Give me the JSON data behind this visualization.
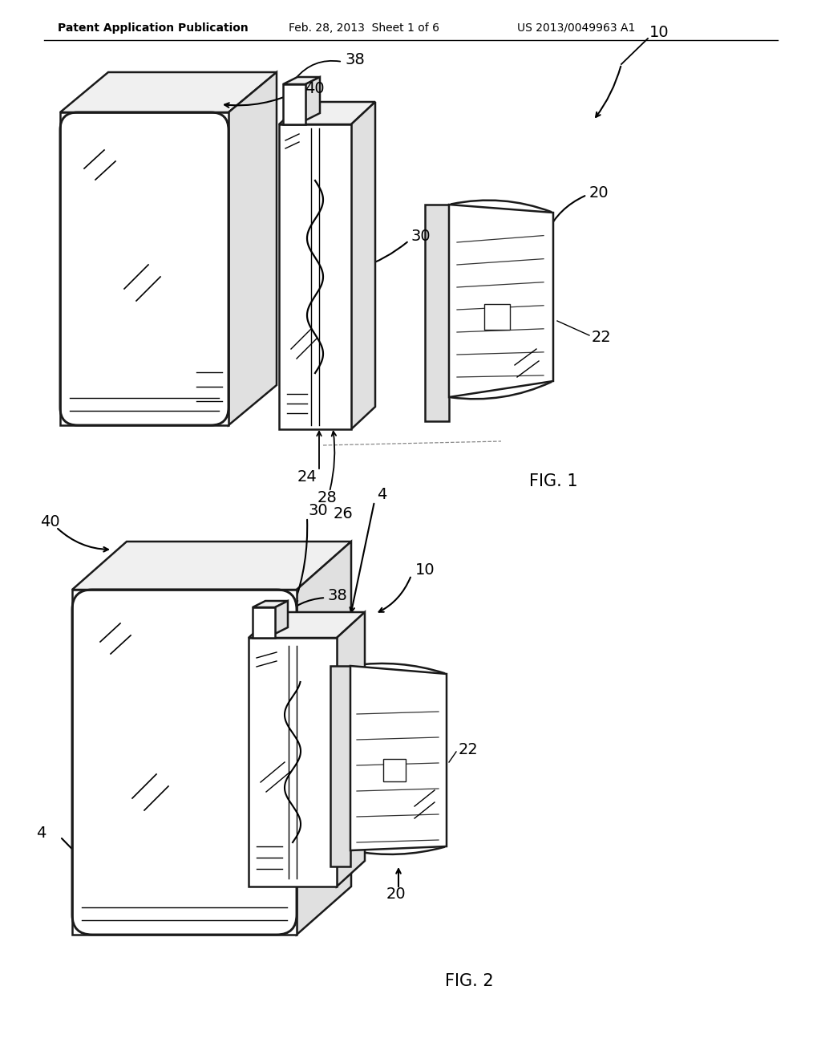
{
  "background_color": "#ffffff",
  "header_left": "Patent Application Publication",
  "header_mid": "Feb. 28, 2013  Sheet 1 of 6",
  "header_right": "US 2013/0049963 A1",
  "fig1_label": "FIG. 1",
  "fig2_label": "FIG. 2",
  "line_color": "#1a1a1a",
  "line_width": 1.8,
  "label_fontsize": 14,
  "face_color_white": "#ffffff",
  "face_color_light": "#f0f0f0",
  "face_color_mid": "#e0e0e0",
  "face_color_dark": "#c8c8c8"
}
